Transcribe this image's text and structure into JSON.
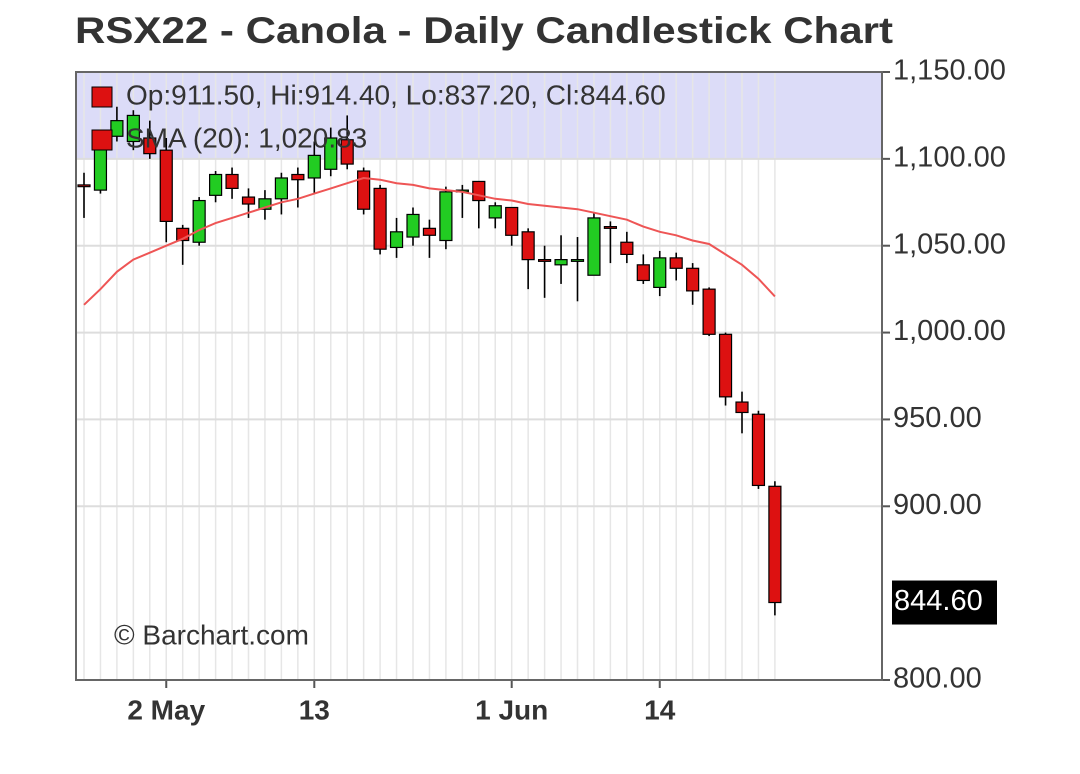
{
  "chart_data": {
    "type": "candlestick",
    "title": "RSX22 - Canola - Daily Candlestick Chart",
    "categories": [
      null,
      null,
      null,
      null,
      null,
      "2 May",
      null,
      null,
      null,
      null,
      null,
      null,
      null,
      null,
      "13",
      null,
      null,
      null,
      null,
      null,
      null,
      null,
      null,
      null,
      null,
      null,
      "1 Jun",
      null,
      null,
      null,
      null,
      null,
      null,
      null,
      null,
      "14",
      null,
      null,
      null,
      null,
      null,
      null,
      null
    ],
    "open": [
      1085,
      1082,
      1113,
      1110,
      1112,
      1105,
      1060,
      1052,
      1079,
      1091,
      1078,
      1071,
      1077,
      1091,
      1089,
      1094,
      1111,
      1093,
      1083,
      1049,
      1055,
      1060,
      1053,
      1081,
      1087,
      1066,
      1072,
      1058,
      1042,
      1039,
      1041,
      1033,
      1061,
      1052,
      1039,
      1026,
      1043,
      1037,
      1025,
      999,
      960,
      953,
      911.5
    ],
    "high": [
      1092,
      1115,
      1130,
      1128,
      1122,
      1112,
      1062,
      1078,
      1093,
      1095,
      1083,
      1082,
      1092,
      1095,
      1110,
      1118,
      1125,
      1095,
      1085,
      1066,
      1072,
      1065,
      1084,
      1085,
      1087,
      1075,
      1072,
      1060,
      1050,
      1056,
      1055,
      1069,
      1064,
      1058,
      1045,
      1047,
      1046,
      1040,
      1026,
      1000,
      966,
      955,
      914.4
    ],
    "low": [
      1066,
      1080,
      1110,
      1105,
      1100,
      1052,
      1039,
      1050,
      1075,
      1077,
      1066,
      1065,
      1068,
      1072,
      1080,
      1090,
      1094,
      1068,
      1045,
      1043,
      1050,
      1043,
      1048,
      1066,
      1060,
      1060,
      1050,
      1025,
      1020,
      1028,
      1018,
      1033,
      1040,
      1040,
      1028,
      1021,
      1030,
      1016,
      998,
      958,
      942,
      910,
      837.2
    ],
    "close": [
      1084,
      1111,
      1122,
      1125,
      1103,
      1064,
      1053,
      1076,
      1091,
      1083,
      1074,
      1077,
      1089,
      1088,
      1102,
      1112,
      1097,
      1071,
      1048,
      1058,
      1068,
      1056,
      1081,
      1082,
      1076,
      1073,
      1056,
      1042,
      1041,
      1042,
      1042,
      1066,
      1060,
      1045,
      1030,
      1043,
      1037,
      1024,
      999,
      963,
      954,
      912,
      844.6
    ],
    "up_color": "#22cc22",
    "down_color": "#dd1111",
    "sma": {
      "name": "SMA (20)",
      "color": "#ee5555",
      "values": [
        1016,
        1025,
        1035,
        1042,
        1046,
        1050,
        1054,
        1059,
        1063,
        1066,
        1069,
        1072,
        1075,
        1077,
        1080,
        1083,
        1086,
        1089,
        1088,
        1086,
        1085,
        1083,
        1082,
        1081,
        1079,
        1077,
        1076,
        1074,
        1073,
        1072,
        1071,
        1069,
        1067,
        1065,
        1061,
        1058,
        1056,
        1053,
        1051,
        1045,
        1039,
        1031,
        1020.83
      ]
    },
    "legend": [
      "Op:911.50, Hi:914.40, Lo:837.20, Cl:844.60",
      "SMA (20): 1,020.83"
    ],
    "legend_color": "#dd1111",
    "last_label": "844.60",
    "watermark": "© Barchart.com",
    "ylim": [
      800,
      1150
    ],
    "yticks": [
      {
        "value": 800,
        "label": "800.00"
      },
      {
        "value": 900,
        "label": "900.00"
      },
      {
        "value": 950,
        "label": "950.00"
      },
      {
        "value": 1000,
        "label": "1,000.00"
      },
      {
        "value": 1050,
        "label": "1,050.00"
      },
      {
        "value": 1100,
        "label": "1,100.00"
      },
      {
        "value": 1150,
        "label": "1,150.00"
      }
    ],
    "grid": true
  }
}
